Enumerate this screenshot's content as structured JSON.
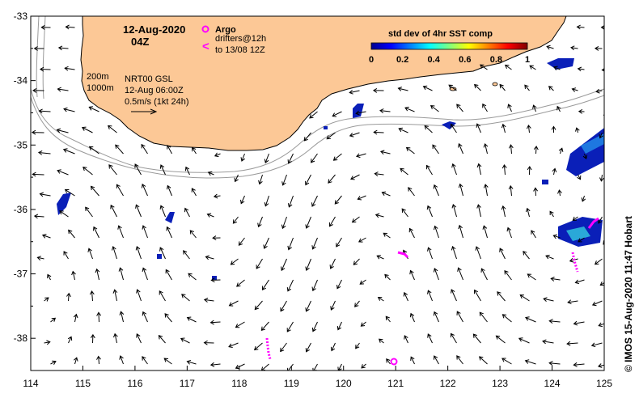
{
  "map": {
    "lon_range": [
      114,
      125
    ],
    "lat_range": [
      -38.5,
      -33
    ],
    "x_ticks": [
      "114",
      "115",
      "116",
      "117",
      "118",
      "119",
      "120",
      "121",
      "122",
      "123",
      "124",
      "125"
    ],
    "y_ticks": [
      "-33",
      "-34",
      "-35",
      "-36",
      "-37",
      "-38"
    ],
    "land_color": "#fcc896",
    "coast_color": "#000000",
    "isobath_color": "#9a9a9a"
  },
  "header": {
    "date": "12-Aug-2020",
    "hour": "04Z"
  },
  "legend": {
    "argo_label": "Argo",
    "drifters_label": "drifters@12h",
    "drifters_to": "to 13/08 12Z",
    "colorbar_title": "std dev of 4hr SST comp",
    "colorbar_ticks": [
      "0",
      "0.2",
      "0.4",
      "0.6",
      "0.8",
      "1"
    ],
    "marker_color": "#ff00ff"
  },
  "annotations": {
    "isobath_200": "200m",
    "isobath_1000": "1000m",
    "product": "NRT00 GSL",
    "valid_time": "12-Aug 06:00Z",
    "scale_label": "0.5m/s (1kt 24h)"
  },
  "credit": "© IMOS 15-Aug-2020 11:47 Hobart"
}
